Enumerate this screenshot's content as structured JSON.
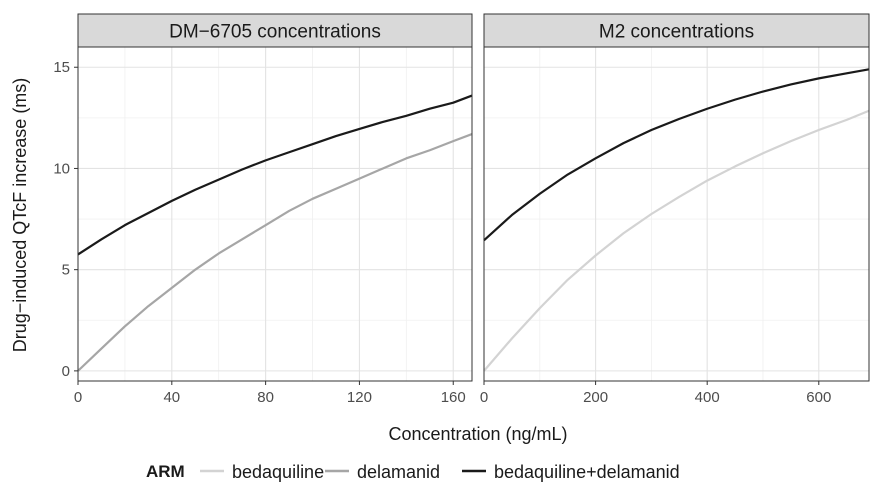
{
  "chart_data": {
    "type": "line",
    "ylabel": "Drug−induced QTcF increase (ms)",
    "xlabel": "Concentration (ng/mL)",
    "ylim": [
      -0.5,
      16
    ],
    "yticks": [
      0,
      5,
      10,
      15
    ],
    "legend": {
      "title": "ARM",
      "placement": "bottom",
      "entries": [
        {
          "name": "bedaquiline",
          "color": "#d3d3d3"
        },
        {
          "name": "delamanid",
          "color": "#a6a6a6"
        },
        {
          "name": "bedaquiline+delamanid",
          "color": "#1a1a1a"
        }
      ]
    },
    "panels": [
      {
        "strip": "DM−6705 concentrations",
        "xlim": [
          0,
          168
        ],
        "xticks": [
          0,
          40,
          80,
          120,
          160
        ],
        "series": [
          {
            "name": "delamanid",
            "color": "#a6a6a6",
            "x": [
              0,
              10,
              20,
              30,
              40,
              50,
              60,
              70,
              80,
              90,
              100,
              110,
              120,
              130,
              140,
              150,
              160,
              168
            ],
            "y": [
              0,
              1.1,
              2.2,
              3.2,
              4.1,
              5.0,
              5.8,
              6.5,
              7.2,
              7.9,
              8.5,
              9.0,
              9.5,
              10.0,
              10.5,
              10.9,
              11.35,
              11.7
            ]
          },
          {
            "name": "bedaquiline+delamanid",
            "color": "#1a1a1a",
            "x": [
              0,
              10,
              20,
              30,
              40,
              50,
              60,
              70,
              80,
              90,
              100,
              110,
              120,
              130,
              140,
              150,
              160,
              168
            ],
            "y": [
              5.75,
              6.5,
              7.2,
              7.8,
              8.4,
              8.95,
              9.45,
              9.95,
              10.4,
              10.8,
              11.2,
              11.6,
              11.95,
              12.3,
              12.6,
              12.95,
              13.25,
              13.6
            ]
          }
        ]
      },
      {
        "strip": "M2 concentrations",
        "xlim": [
          0,
          690
        ],
        "xticks": [
          0,
          200,
          400,
          600
        ],
        "series": [
          {
            "name": "bedaquiline",
            "color": "#d3d3d3",
            "x": [
              0,
              50,
              100,
              150,
              200,
              250,
              300,
              350,
              400,
              450,
              500,
              550,
              600,
              650,
              690
            ],
            "y": [
              0,
              1.6,
              3.1,
              4.5,
              5.7,
              6.8,
              7.75,
              8.6,
              9.4,
              10.1,
              10.75,
              11.35,
              11.9,
              12.4,
              12.85
            ]
          },
          {
            "name": "bedaquiline+delamanid",
            "color": "#1a1a1a",
            "x": [
              0,
              50,
              100,
              150,
              200,
              250,
              300,
              350,
              400,
              450,
              500,
              550,
              600,
              650,
              690
            ],
            "y": [
              6.45,
              7.7,
              8.75,
              9.7,
              10.5,
              11.25,
              11.9,
              12.45,
              12.95,
              13.4,
              13.8,
              14.15,
              14.45,
              14.7,
              14.9
            ]
          }
        ]
      }
    ]
  }
}
